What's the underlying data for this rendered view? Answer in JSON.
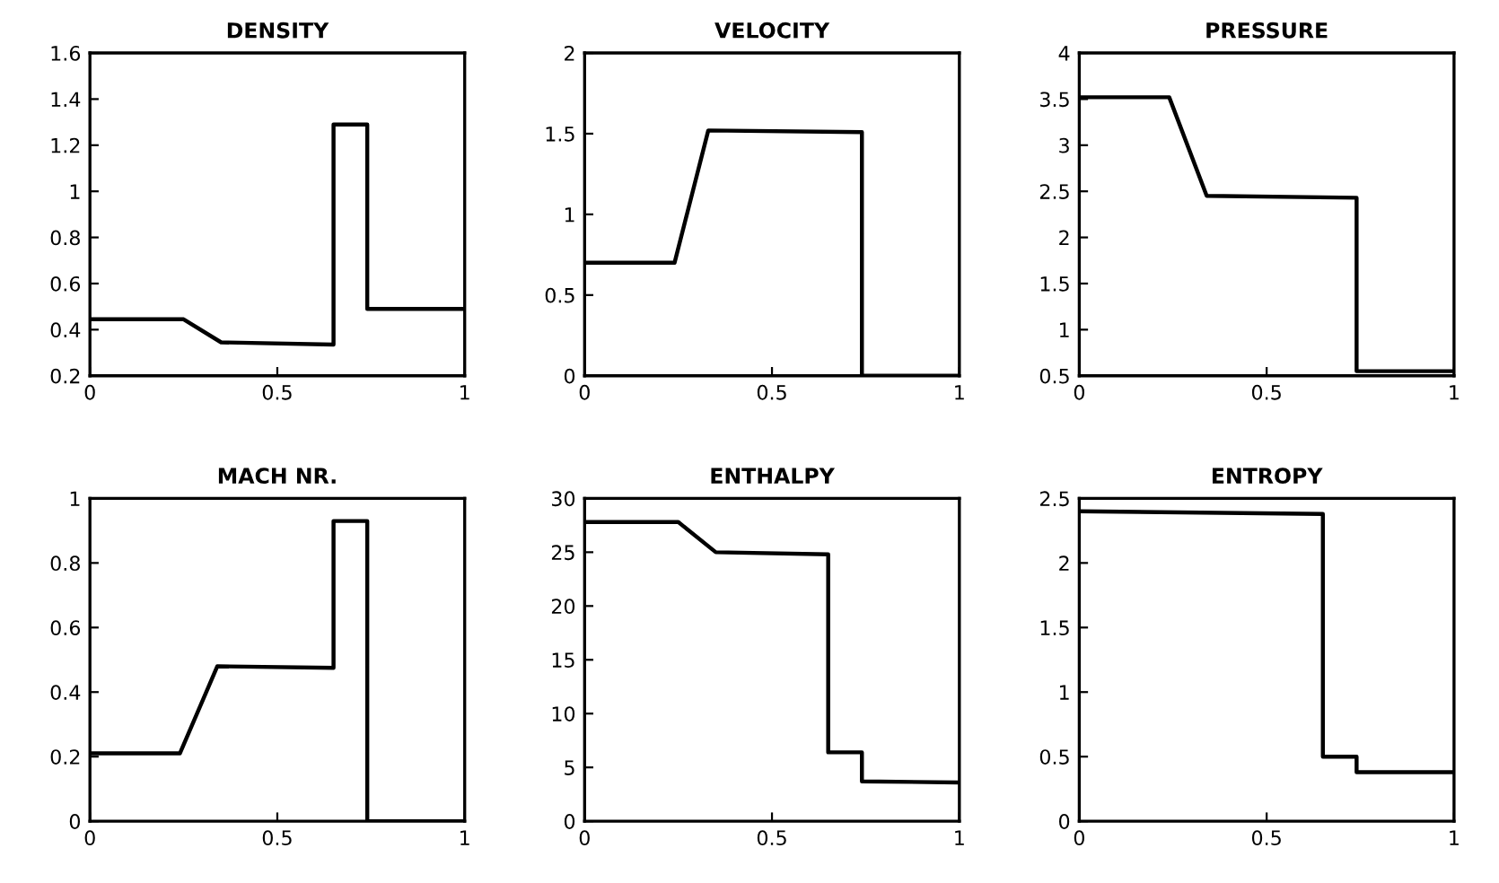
{
  "chart_data": [
    {
      "type": "line",
      "title": "DENSITY",
      "x": [
        0,
        0.25,
        0.35,
        0.65,
        0.65,
        0.74,
        0.74,
        1
      ],
      "values": [
        0.445,
        0.445,
        0.345,
        0.335,
        1.29,
        1.29,
        0.49,
        0.49
      ],
      "color": "#000000",
      "xlim": [
        0,
        1
      ],
      "xticks": [
        0,
        0.5,
        1
      ],
      "ylim": [
        0.2,
        1.6
      ],
      "yticks": [
        0.2,
        0.4,
        0.6,
        0.8,
        1,
        1.2,
        1.4,
        1.6
      ]
    },
    {
      "type": "line",
      "title": "VELOCITY",
      "x": [
        0,
        0.24,
        0.33,
        0.74,
        0.74,
        1
      ],
      "values": [
        0.7,
        0.7,
        1.52,
        1.51,
        0,
        0
      ],
      "color": "#000000",
      "xlim": [
        0,
        1
      ],
      "xticks": [
        0,
        0.5,
        1
      ],
      "ylim": [
        0,
        2
      ],
      "yticks": [
        0,
        0.5,
        1,
        1.5,
        2
      ]
    },
    {
      "type": "line",
      "title": "PRESSURE",
      "x": [
        0,
        0.24,
        0.34,
        0.74,
        0.74,
        1
      ],
      "values": [
        3.52,
        3.52,
        2.45,
        2.43,
        0.55,
        0.55
      ],
      "color": "#000000",
      "xlim": [
        0,
        1
      ],
      "xticks": [
        0,
        0.5,
        1
      ],
      "ylim": [
        0.5,
        4
      ],
      "yticks": [
        0.5,
        1,
        1.5,
        2,
        2.5,
        3,
        3.5,
        4
      ]
    },
    {
      "type": "line",
      "title": "MACH NR.",
      "x": [
        0,
        0.24,
        0.34,
        0.65,
        0.65,
        0.74,
        0.74,
        1
      ],
      "values": [
        0.21,
        0.21,
        0.48,
        0.475,
        0.93,
        0.93,
        0,
        0
      ],
      "color": "#000000",
      "xlim": [
        0,
        1
      ],
      "xticks": [
        0,
        0.5,
        1
      ],
      "ylim": [
        0,
        1
      ],
      "yticks": [
        0,
        0.2,
        0.4,
        0.6,
        0.8,
        1
      ]
    },
    {
      "type": "line",
      "title": "ENTHALPY",
      "x": [
        0,
        0.25,
        0.35,
        0.65,
        0.65,
        0.74,
        0.74,
        1
      ],
      "values": [
        27.8,
        27.8,
        25,
        24.8,
        6.4,
        6.4,
        3.7,
        3.6
      ],
      "color": "#000000",
      "xlim": [
        0,
        1
      ],
      "xticks": [
        0,
        0.5,
        1
      ],
      "ylim": [
        0,
        30
      ],
      "yticks": [
        0,
        5,
        10,
        15,
        20,
        25,
        30
      ]
    },
    {
      "type": "line",
      "title": "ENTROPY",
      "x": [
        0,
        0.65,
        0.65,
        0.74,
        0.74,
        1
      ],
      "values": [
        2.4,
        2.38,
        0.5,
        0.5,
        0.38,
        0.38
      ],
      "color": "#000000",
      "xlim": [
        0,
        1
      ],
      "xticks": [
        0,
        0.5,
        1
      ],
      "ylim": [
        0,
        2.5
      ],
      "yticks": [
        0,
        0.5,
        1,
        1.5,
        2,
        2.5
      ]
    }
  ]
}
